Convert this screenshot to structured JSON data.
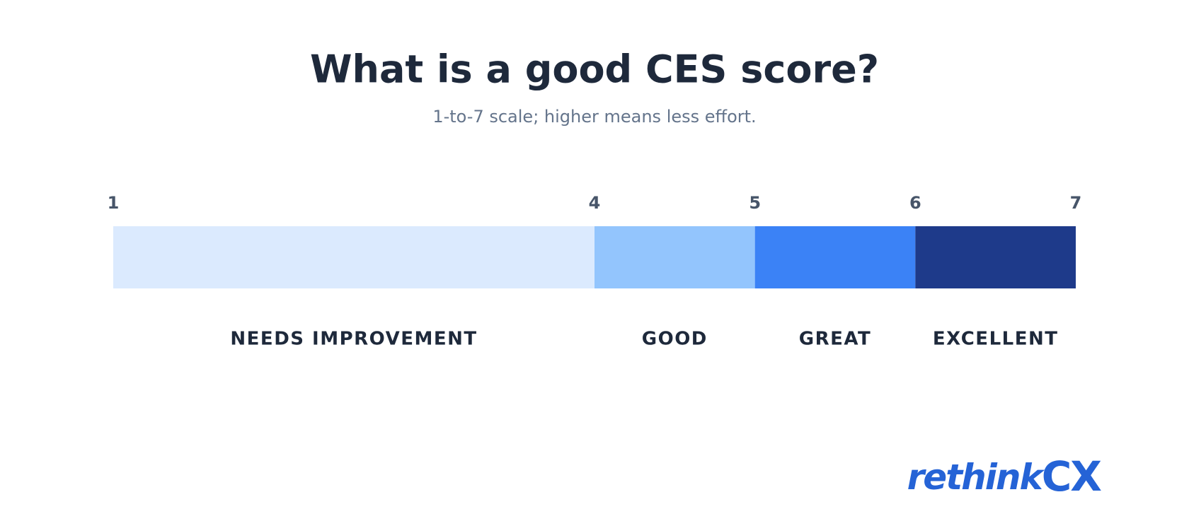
{
  "chart_data": {
    "type": "scale",
    "title": "What is a good CES score?",
    "subtitle": "1-to-7 scale; higher means less effort.",
    "categories": [
      "NEEDS IMPROVEMENT",
      "GOOD",
      "GREAT",
      "EXCELLENT"
    ],
    "values": [
      3,
      1,
      1,
      1
    ],
    "colors": [
      "#dbeafe",
      "#93c5fd",
      "#3b82f6",
      "#1e3a8a"
    ],
    "xlim": [
      1,
      7
    ],
    "xticks": [
      1,
      4,
      5,
      6,
      7
    ]
  },
  "brand": {
    "part1": "rethink",
    "part2": "CX"
  }
}
